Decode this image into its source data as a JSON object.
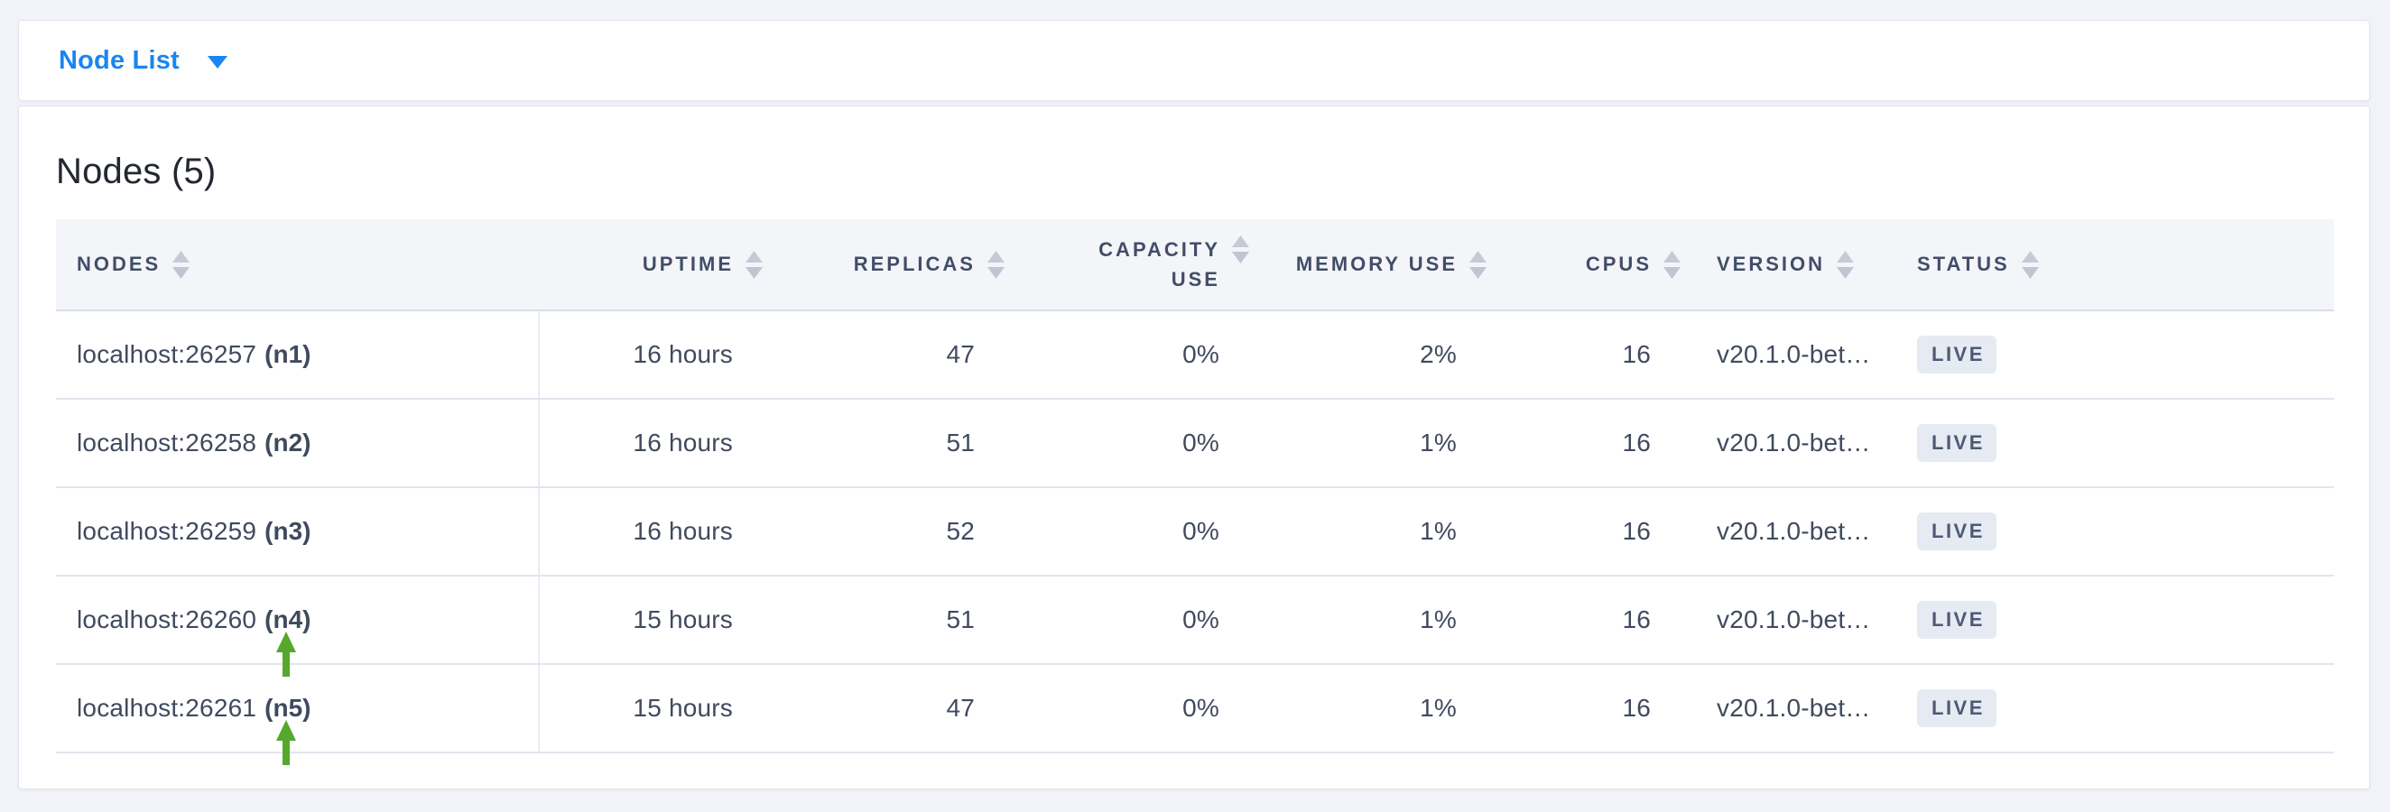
{
  "page": {
    "background_color": "#f2f3f9",
    "accent_blue": "#1a85f0",
    "arrow_green": "#55a82b",
    "badge_bg": "#e6eaf2",
    "header_text_color": "#414e68",
    "cell_text_color": "#404a5e"
  },
  "toolbar": {
    "dropdown_label": "Node List",
    "dropdown_caret_icon": "chevron-down"
  },
  "main": {
    "title": "Nodes (5)"
  },
  "table": {
    "columns": [
      {
        "key": "nodes",
        "label": "NODES",
        "align": "left",
        "sortable": true
      },
      {
        "key": "uptime",
        "label": "UPTIME",
        "align": "right",
        "sortable": true
      },
      {
        "key": "replicas",
        "label": "REPLICAS",
        "align": "right",
        "sortable": true
      },
      {
        "key": "capacity_use",
        "label": "CAPACITY USE",
        "label_lines": [
          "CAPACITY",
          "USE"
        ],
        "align": "right",
        "sortable": true
      },
      {
        "key": "memory_use",
        "label": "MEMORY USE",
        "align": "right",
        "sortable": true
      },
      {
        "key": "cpus",
        "label": "CPUS",
        "align": "right",
        "sortable": true
      },
      {
        "key": "version",
        "label": "VERSION",
        "align": "left",
        "sortable": true
      },
      {
        "key": "status",
        "label": "STATUS",
        "align": "left",
        "sortable": true
      }
    ],
    "rows": [
      {
        "address": "localhost:26257",
        "node_id": "(n1)",
        "uptime": "16 hours",
        "replicas": "47",
        "capacity_use": "0%",
        "memory_use": "2%",
        "cpus": "16",
        "version": "v20.1.0-bet…",
        "status": "LIVE",
        "annotated": false
      },
      {
        "address": "localhost:26258",
        "node_id": "(n2)",
        "uptime": "16 hours",
        "replicas": "51",
        "capacity_use": "0%",
        "memory_use": "1%",
        "cpus": "16",
        "version": "v20.1.0-bet…",
        "status": "LIVE",
        "annotated": false
      },
      {
        "address": "localhost:26259",
        "node_id": "(n3)",
        "uptime": "16 hours",
        "replicas": "52",
        "capacity_use": "0%",
        "memory_use": "1%",
        "cpus": "16",
        "version": "v20.1.0-bet…",
        "status": "LIVE",
        "annotated": false
      },
      {
        "address": "localhost:26260",
        "node_id": "(n4)",
        "uptime": "15 hours",
        "replicas": "51",
        "capacity_use": "0%",
        "memory_use": "1%",
        "cpus": "16",
        "version": "v20.1.0-bet…",
        "status": "LIVE",
        "annotated": true
      },
      {
        "address": "localhost:26261",
        "node_id": "(n5)",
        "uptime": "15 hours",
        "replicas": "47",
        "capacity_use": "0%",
        "memory_use": "1%",
        "cpus": "16",
        "version": "v20.1.0-bet…",
        "status": "LIVE",
        "annotated": true
      }
    ]
  },
  "annotations": {
    "arrow_targets": [
      "(n4)",
      "(n5)"
    ]
  }
}
